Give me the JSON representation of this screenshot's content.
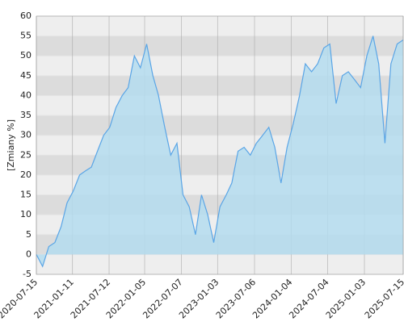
{
  "chart_data": {
    "type": "area",
    "ylabel": "[Zmiany %]",
    "x": [
      "2020-07-15",
      "2020-08-15",
      "2020-09-15",
      "2020-10-15",
      "2020-11-15",
      "2020-12-15",
      "2021-01-15",
      "2021-02-15",
      "2021-03-15",
      "2021-04-15",
      "2021-05-15",
      "2021-06-15",
      "2021-07-15",
      "2021-08-15",
      "2021-09-15",
      "2021-10-15",
      "2021-11-15",
      "2021-12-15",
      "2022-01-15",
      "2022-02-15",
      "2022-03-15",
      "2022-04-15",
      "2022-05-15",
      "2022-06-15",
      "2022-07-15",
      "2022-08-15",
      "2022-09-15",
      "2022-10-15",
      "2022-11-15",
      "2022-12-15",
      "2023-01-15",
      "2023-02-15",
      "2023-03-15",
      "2023-04-15",
      "2023-05-15",
      "2023-06-15",
      "2023-07-15",
      "2023-08-15",
      "2023-09-15",
      "2023-10-15",
      "2023-11-15",
      "2023-12-15",
      "2024-01-15",
      "2024-02-15",
      "2024-03-15",
      "2024-04-15",
      "2024-05-15",
      "2024-06-15",
      "2024-07-15",
      "2024-08-15",
      "2024-09-15",
      "2024-10-15",
      "2024-11-15",
      "2024-12-15",
      "2025-01-15",
      "2025-02-15",
      "2025-03-15",
      "2025-04-15",
      "2025-05-15",
      "2025-06-15",
      "2025-07-15"
    ],
    "series": [
      {
        "color": "#5aa5e6",
        "fill": "#b4dcee",
        "values": [
          0,
          -3,
          2,
          3,
          7,
          13,
          16,
          20,
          21,
          22,
          26,
          30,
          32,
          37,
          40,
          42,
          50,
          47,
          53,
          45,
          40,
          32,
          25,
          28,
          15,
          12,
          5,
          15,
          10,
          3,
          12,
          15,
          18,
          26,
          27,
          25,
          28,
          30,
          32,
          27,
          18,
          27,
          33,
          40,
          48,
          46,
          48,
          52,
          53,
          38,
          45,
          46,
          44,
          42,
          50,
          55,
          48,
          28,
          48,
          53,
          54
        ]
      }
    ],
    "xlim": [
      "2020-07-15",
      "2025-07-15"
    ],
    "xticks": [
      "2020-07-15",
      "2021-01-11",
      "2021-07-12",
      "2022-01-05",
      "2022-07-07",
      "2023-01-03",
      "2023-07-06",
      "2024-01-04",
      "2024-07-04",
      "2025-01-03",
      "2025-07-15"
    ],
    "ylim": [
      -5,
      60
    ],
    "yticks": [
      -5,
      0,
      5,
      10,
      15,
      20,
      25,
      30,
      35,
      40,
      45,
      50,
      55,
      60
    ],
    "grid": true
  }
}
